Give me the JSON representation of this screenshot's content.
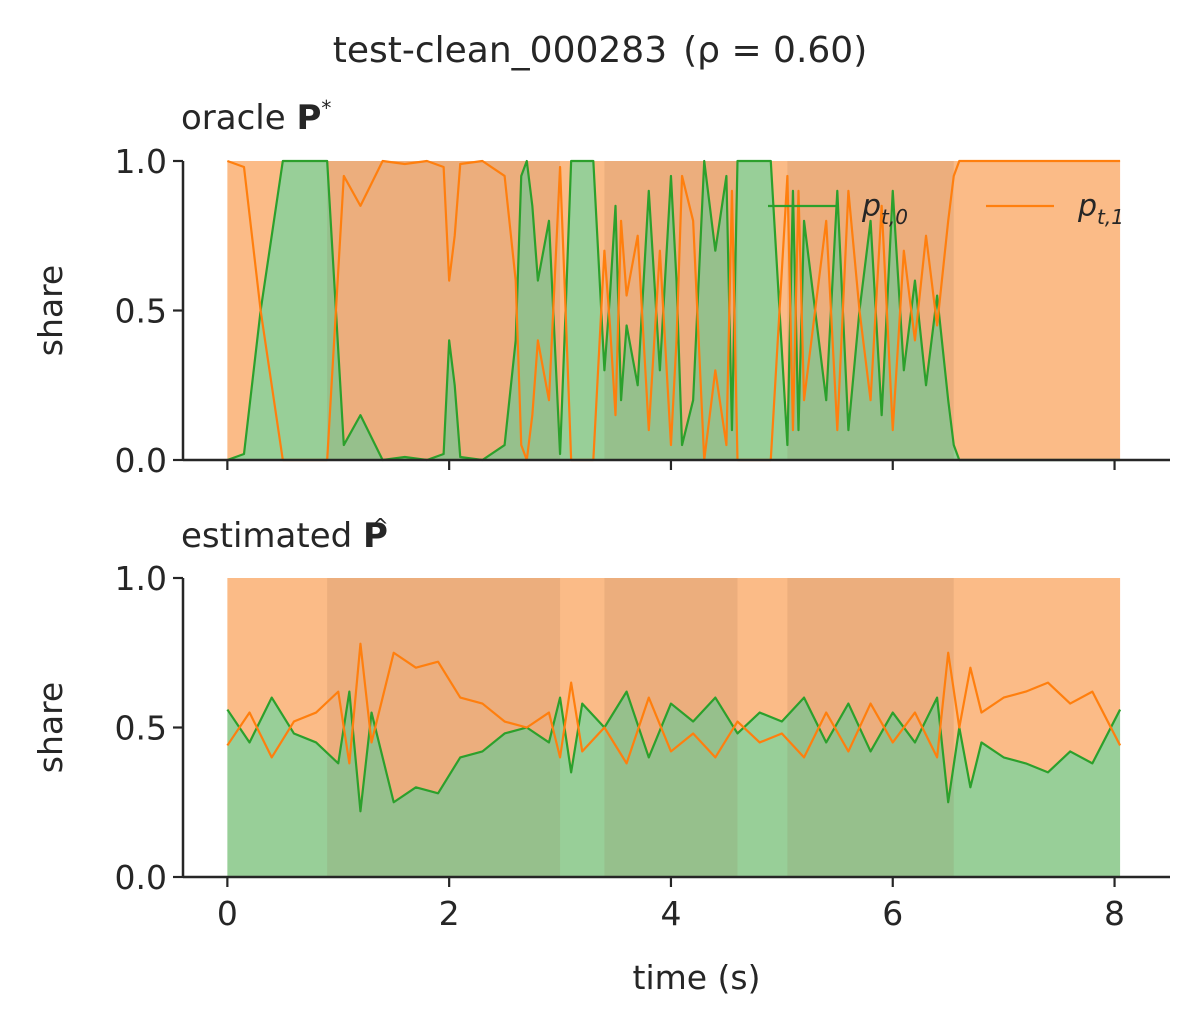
{
  "figure": {
    "title_text": "test-clean_000283",
    "title_rho": "(ρ = 0.60)"
  },
  "chart_data": [
    {
      "type": "area",
      "panel_title_prefix": "oracle",
      "panel_title_symbol": "P",
      "panel_title_mark": "*",
      "xlabel": "",
      "ylabel": "share",
      "xlim": [
        -0.4,
        8.5
      ],
      "ylim": [
        0,
        1
      ],
      "xticks": [
        0,
        2,
        4,
        6,
        8
      ],
      "yticks": [
        0.0,
        0.5,
        1.0
      ],
      "ytick_labels": [
        "0.0",
        "0.5",
        "1.0"
      ],
      "grid": false,
      "legend_position": "top-right",
      "stacked": true,
      "colors": {
        "series_0": "#2ca02c",
        "series_1": "#ff7f0e",
        "fill_0": "#98cf98",
        "fill_1": "#fbbb87",
        "segment_shade": "#8b5a3c"
      },
      "segments": [
        [
          0.9,
          3.0
        ],
        [
          3.4,
          4.6
        ],
        [
          5.05,
          6.55
        ]
      ],
      "series": [
        {
          "name": "p_t,0",
          "label_main": "p",
          "label_sub": "t,0",
          "x": [
            0,
            0.15,
            0.3,
            0.5,
            0.9,
            1.05,
            1.2,
            1.4,
            1.6,
            1.8,
            1.95,
            2.0,
            2.05,
            2.1,
            2.3,
            2.5,
            2.6,
            2.65,
            2.7,
            2.75,
            2.8,
            2.9,
            3.0,
            3.05,
            3.1,
            3.3,
            3.4,
            3.45,
            3.5,
            3.55,
            3.6,
            3.7,
            3.8,
            3.9,
            4.0,
            4.05,
            4.1,
            4.2,
            4.3,
            4.4,
            4.5,
            4.55,
            4.6,
            4.7,
            4.8,
            4.9,
            5.05,
            5.1,
            5.15,
            5.2,
            5.3,
            5.4,
            5.5,
            5.6,
            5.7,
            5.8,
            5.9,
            6.0,
            6.1,
            6.2,
            6.3,
            6.4,
            6.5,
            6.55,
            6.6,
            7.0,
            8.05
          ],
          "y": [
            0.0,
            0.02,
            0.5,
            1.0,
            1.0,
            0.05,
            0.15,
            0.0,
            0.01,
            0.0,
            0.02,
            0.4,
            0.25,
            0.01,
            0.0,
            0.05,
            0.4,
            0.95,
            1.0,
            0.85,
            0.6,
            0.8,
            0.02,
            0.5,
            1.0,
            1.0,
            0.3,
            0.55,
            0.85,
            0.2,
            0.45,
            0.25,
            0.9,
            0.3,
            0.95,
            0.6,
            0.05,
            0.2,
            1.0,
            0.7,
            0.95,
            0.1,
            1.0,
            1.0,
            1.0,
            1.0,
            0.05,
            0.9,
            0.1,
            0.8,
            0.5,
            0.2,
            0.9,
            0.1,
            0.5,
            0.8,
            0.15,
            0.9,
            0.3,
            0.6,
            0.25,
            0.55,
            0.2,
            0.05,
            0.0,
            0.0,
            0.0
          ]
        },
        {
          "name": "p_t,1",
          "label_main": "p",
          "label_sub": "t,1",
          "x": [
            0,
            0.15,
            0.3,
            0.5,
            0.9,
            1.05,
            1.2,
            1.4,
            1.6,
            1.8,
            1.95,
            2.0,
            2.05,
            2.1,
            2.3,
            2.5,
            2.6,
            2.65,
            2.7,
            2.75,
            2.8,
            2.9,
            3.0,
            3.05,
            3.1,
            3.3,
            3.4,
            3.45,
            3.5,
            3.55,
            3.6,
            3.7,
            3.8,
            3.9,
            4.0,
            4.05,
            4.1,
            4.2,
            4.3,
            4.4,
            4.5,
            4.55,
            4.6,
            4.7,
            4.8,
            4.9,
            5.05,
            5.1,
            5.15,
            5.2,
            5.3,
            5.4,
            5.5,
            5.6,
            5.7,
            5.8,
            5.9,
            6.0,
            6.1,
            6.2,
            6.3,
            6.4,
            6.5,
            6.55,
            6.6,
            7.0,
            8.05
          ],
          "y": [
            1.0,
            0.98,
            0.5,
            0.0,
            0.0,
            0.95,
            0.85,
            1.0,
            0.99,
            1.0,
            0.98,
            0.6,
            0.75,
            0.99,
            1.0,
            0.95,
            0.6,
            0.05,
            0.0,
            0.15,
            0.4,
            0.2,
            0.98,
            0.5,
            0.0,
            0.0,
            0.7,
            0.45,
            0.15,
            0.8,
            0.55,
            0.75,
            0.1,
            0.7,
            0.05,
            0.4,
            0.95,
            0.8,
            0.0,
            0.3,
            0.05,
            0.9,
            0.0,
            0.0,
            0.0,
            0.0,
            0.95,
            0.1,
            0.9,
            0.2,
            0.5,
            0.8,
            0.1,
            0.9,
            0.5,
            0.2,
            0.85,
            0.1,
            0.7,
            0.4,
            0.75,
            0.45,
            0.8,
            0.95,
            1.0,
            1.0,
            1.0
          ]
        }
      ]
    },
    {
      "type": "area",
      "panel_title_prefix": "estimated",
      "panel_title_symbol": "P",
      "panel_title_mark": "^",
      "xlabel": "time (s)",
      "ylabel": "share",
      "xlim": [
        -0.4,
        8.5
      ],
      "ylim": [
        0,
        1
      ],
      "xticks": [
        0,
        2,
        4,
        6,
        8
      ],
      "xtick_labels": [
        "0",
        "2",
        "4",
        "6",
        "8"
      ],
      "yticks": [
        0.0,
        0.5,
        1.0
      ],
      "ytick_labels": [
        "0.0",
        "0.5",
        "1.0"
      ],
      "grid": false,
      "stacked": true,
      "colors": {
        "series_0": "#2ca02c",
        "series_1": "#ff7f0e",
        "fill_0": "#98cf98",
        "fill_1": "#fbbb87",
        "segment_shade": "#8b5a3c"
      },
      "segments": [
        [
          0.9,
          3.0
        ],
        [
          3.4,
          4.6
        ],
        [
          5.05,
          6.55
        ]
      ],
      "series": [
        {
          "name": "p_t,0",
          "x": [
            0,
            0.2,
            0.4,
            0.6,
            0.8,
            1.0,
            1.1,
            1.2,
            1.3,
            1.5,
            1.7,
            1.9,
            2.1,
            2.3,
            2.5,
            2.7,
            2.9,
            3.0,
            3.1,
            3.2,
            3.4,
            3.6,
            3.8,
            4.0,
            4.2,
            4.4,
            4.6,
            4.8,
            5.0,
            5.2,
            5.4,
            5.6,
            5.8,
            6.0,
            6.2,
            6.4,
            6.5,
            6.6,
            6.7,
            6.8,
            7.0,
            7.2,
            7.4,
            7.6,
            7.8,
            8.05
          ],
          "y": [
            0.56,
            0.45,
            0.6,
            0.48,
            0.45,
            0.38,
            0.62,
            0.22,
            0.55,
            0.25,
            0.3,
            0.28,
            0.4,
            0.42,
            0.48,
            0.5,
            0.45,
            0.6,
            0.35,
            0.58,
            0.5,
            0.62,
            0.4,
            0.58,
            0.52,
            0.6,
            0.48,
            0.55,
            0.52,
            0.6,
            0.45,
            0.58,
            0.42,
            0.55,
            0.45,
            0.6,
            0.25,
            0.5,
            0.3,
            0.45,
            0.4,
            0.38,
            0.35,
            0.42,
            0.38,
            0.56
          ]
        },
        {
          "name": "p_t,1",
          "x": [
            0,
            0.2,
            0.4,
            0.6,
            0.8,
            1.0,
            1.1,
            1.2,
            1.3,
            1.5,
            1.7,
            1.9,
            2.1,
            2.3,
            2.5,
            2.7,
            2.9,
            3.0,
            3.1,
            3.2,
            3.4,
            3.6,
            3.8,
            4.0,
            4.2,
            4.4,
            4.6,
            4.8,
            5.0,
            5.2,
            5.4,
            5.6,
            5.8,
            6.0,
            6.2,
            6.4,
            6.5,
            6.6,
            6.7,
            6.8,
            7.0,
            7.2,
            7.4,
            7.6,
            7.8,
            8.05
          ],
          "y": [
            0.44,
            0.55,
            0.4,
            0.52,
            0.55,
            0.62,
            0.38,
            0.78,
            0.45,
            0.75,
            0.7,
            0.72,
            0.6,
            0.58,
            0.52,
            0.5,
            0.55,
            0.4,
            0.65,
            0.42,
            0.5,
            0.38,
            0.6,
            0.42,
            0.48,
            0.4,
            0.52,
            0.45,
            0.48,
            0.4,
            0.55,
            0.42,
            0.58,
            0.45,
            0.55,
            0.4,
            0.75,
            0.5,
            0.7,
            0.55,
            0.6,
            0.62,
            0.65,
            0.58,
            0.62,
            0.44
          ]
        }
      ]
    }
  ]
}
